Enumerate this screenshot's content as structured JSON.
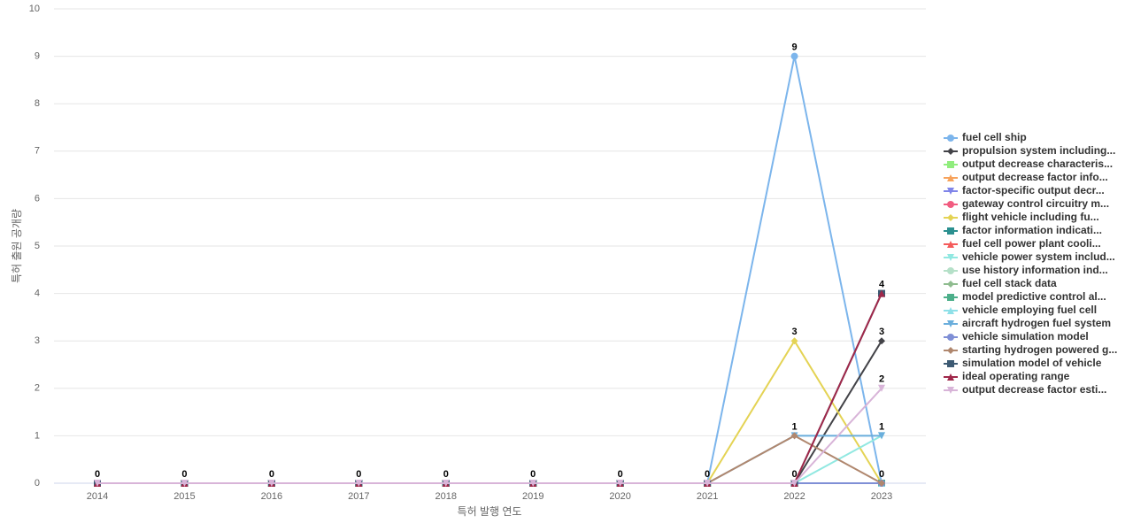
{
  "chart_data": {
    "type": "line",
    "x_label": "특허 발행 연도",
    "y_label": "특허 출원 공개량",
    "categories": [
      "2014",
      "2015",
      "2016",
      "2017",
      "2018",
      "2019",
      "2020",
      "2021",
      "2022",
      "2023"
    ],
    "ylim": [
      0,
      10
    ],
    "yticks": [
      0,
      1,
      2,
      3,
      4,
      5,
      6,
      7,
      8,
      9,
      10
    ],
    "grid": true,
    "series": [
      {
        "name": "fuel cell ship",
        "color": "#7cb5ec",
        "values": [
          0,
          0,
          0,
          0,
          0,
          0,
          0,
          0,
          9,
          0
        ]
      },
      {
        "name": "propulsion system including...",
        "color": "#434348",
        "values": [
          0,
          0,
          0,
          0,
          0,
          0,
          0,
          0,
          0,
          3
        ]
      },
      {
        "name": "output decrease characteris...",
        "color": "#90ed7d",
        "values": [
          0,
          0,
          0,
          0,
          0,
          0,
          0,
          0,
          0,
          0
        ]
      },
      {
        "name": "output decrease factor info...",
        "color": "#f7a35c",
        "values": [
          0,
          0,
          0,
          0,
          0,
          0,
          0,
          0,
          0,
          0
        ]
      },
      {
        "name": "factor-specific output decr...",
        "color": "#8085e9",
        "values": [
          0,
          0,
          0,
          0,
          0,
          0,
          0,
          0,
          0,
          0
        ]
      },
      {
        "name": "gateway control circuitry m...",
        "color": "#f15c80",
        "values": [
          0,
          0,
          0,
          0,
          0,
          0,
          0,
          0,
          0,
          0
        ]
      },
      {
        "name": "flight vehicle including fu...",
        "color": "#e4d354",
        "values": [
          0,
          0,
          0,
          0,
          0,
          0,
          0,
          0,
          3,
          0
        ]
      },
      {
        "name": "factor information indicati...",
        "color": "#2b908f",
        "values": [
          0,
          0,
          0,
          0,
          0,
          0,
          0,
          0,
          0,
          0
        ]
      },
      {
        "name": "fuel cell power plant cooli...",
        "color": "#f45b5b",
        "values": [
          0,
          0,
          0,
          0,
          0,
          0,
          0,
          0,
          0,
          0
        ]
      },
      {
        "name": "vehicle power system includ...",
        "color": "#91e8e1",
        "values": [
          0,
          0,
          0,
          0,
          0,
          0,
          0,
          0,
          0,
          1
        ]
      },
      {
        "name": "use history information ind...",
        "color": "#b5e0c8",
        "values": [
          0,
          0,
          0,
          0,
          0,
          0,
          0,
          0,
          0,
          0
        ]
      },
      {
        "name": "fuel cell stack data",
        "color": "#8fbc8f",
        "values": [
          0,
          0,
          0,
          0,
          0,
          0,
          0,
          0,
          0,
          0
        ]
      },
      {
        "name": "model predictive control al...",
        "color": "#4caf8a",
        "values": [
          0,
          0,
          0,
          0,
          0,
          0,
          0,
          0,
          0,
          0
        ]
      },
      {
        "name": "vehicle employing fuel cell",
        "color": "#8ee0e8",
        "values": [
          0,
          0,
          0,
          0,
          0,
          0,
          0,
          0,
          0,
          0
        ]
      },
      {
        "name": "aircraft hydrogen fuel system",
        "color": "#6aaedc",
        "values": [
          0,
          0,
          0,
          0,
          0,
          0,
          0,
          0,
          1,
          1
        ]
      },
      {
        "name": "vehicle simulation model",
        "color": "#7f8fd6",
        "values": [
          0,
          0,
          0,
          0,
          0,
          0,
          0,
          0,
          0,
          0
        ]
      },
      {
        "name": "starting hydrogen powered g...",
        "color": "#b0876e",
        "values": [
          0,
          0,
          0,
          0,
          0,
          0,
          0,
          0,
          1,
          0
        ]
      },
      {
        "name": "simulation model of vehicle",
        "color": "#3d5a73",
        "values": [
          0,
          0,
          0,
          0,
          0,
          0,
          0,
          0,
          0,
          4
        ]
      },
      {
        "name": "ideal operating range",
        "color": "#a0284a",
        "values": [
          0,
          0,
          0,
          0,
          0,
          0,
          0,
          0,
          0,
          4
        ]
      },
      {
        "name": "output decrease factor esti...",
        "color": "#d8b4d8",
        "values": [
          0,
          0,
          0,
          0,
          0,
          0,
          0,
          0,
          0,
          2
        ]
      }
    ]
  }
}
